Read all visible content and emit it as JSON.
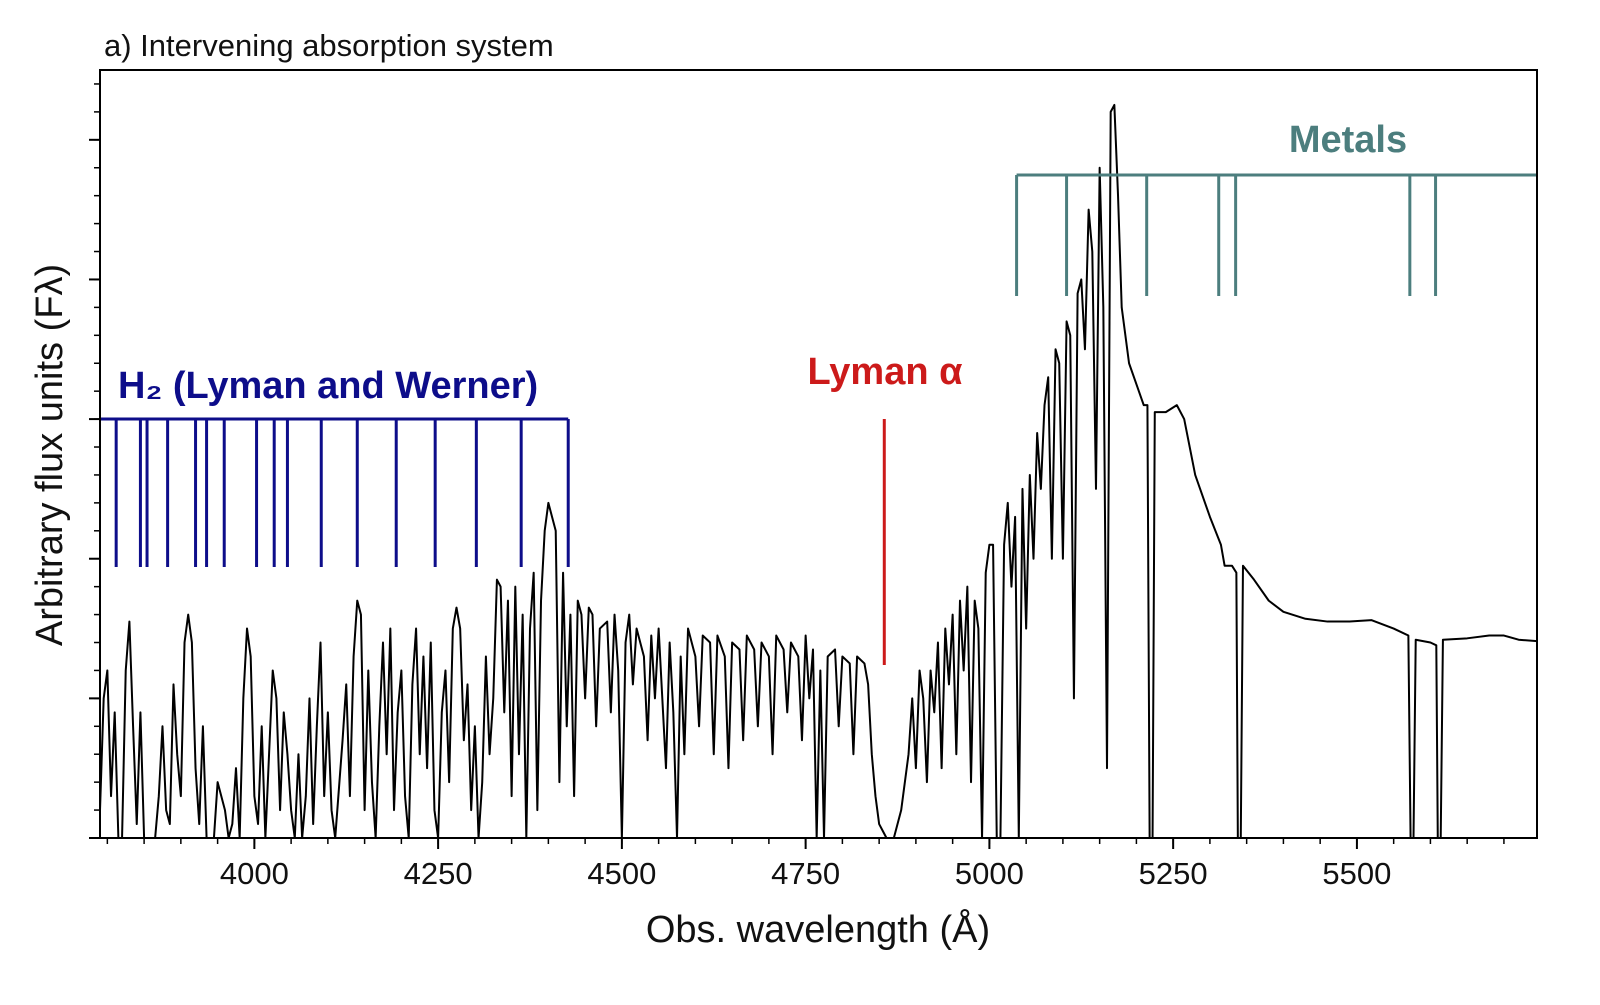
{
  "chart_data": {
    "type": "line",
    "title": "a) Intervening absorption system",
    "x_label": "Obs. wavelength  (Å)",
    "y_label": "Arbitrary flux units (Fλ)",
    "xlim": [
      3790,
      5745
    ],
    "xticks": [
      4000,
      4250,
      4500,
      4750,
      5000,
      5250,
      5500
    ],
    "xminor_step": 50,
    "ylim": [
      0,
      5.5
    ],
    "yticks": [
      0,
      1,
      2,
      3,
      4,
      5
    ],
    "yminor_step": 0.2,
    "series": [
      {
        "color": "#000000",
        "x": [
          3790,
          3795,
          3800,
          3805,
          3810,
          3815,
          3820,
          3825,
          3830,
          3835,
          3840,
          3845,
          3850,
          3855,
          3865,
          3870,
          3875,
          3880,
          3885,
          3890,
          3895,
          3900,
          3905,
          3910,
          3915,
          3920,
          3925,
          3930,
          3935,
          3945,
          3950,
          3960,
          3965,
          3970,
          3975,
          3980,
          3985,
          3990,
          3995,
          4000,
          4005,
          4010,
          4015,
          4020,
          4025,
          4030,
          4035,
          4040,
          4045,
          4050,
          4055,
          4060,
          4065,
          4070,
          4075,
          4080,
          4085,
          4090,
          4095,
          4100,
          4105,
          4110,
          4120,
          4125,
          4130,
          4135,
          4140,
          4145,
          4150,
          4155,
          4160,
          4165,
          4170,
          4175,
          4180,
          4185,
          4190,
          4195,
          4200,
          4205,
          4210,
          4215,
          4220,
          4225,
          4230,
          4235,
          4240,
          4245,
          4250,
          4255,
          4260,
          4265,
          4270,
          4275,
          4280,
          4285,
          4290,
          4295,
          4300,
          4305,
          4310,
          4315,
          4320,
          4325,
          4330,
          4335,
          4340,
          4345,
          4350,
          4355,
          4360,
          4365,
          4370,
          4375,
          4380,
          4385,
          4390,
          4395,
          4400,
          4405,
          4410,
          4415,
          4420,
          4425,
          4430,
          4435,
          4440,
          4445,
          4450,
          4455,
          4460,
          4465,
          4470,
          4480,
          4485,
          4490,
          4495,
          4500,
          4505,
          4510,
          4515,
          4520,
          4530,
          4535,
          4540,
          4545,
          4550,
          4560,
          4565,
          4570,
          4575,
          4580,
          4585,
          4590,
          4600,
          4605,
          4610,
          4620,
          4625,
          4630,
          4640,
          4645,
          4650,
          4660,
          4665,
          4670,
          4680,
          4685,
          4690,
          4700,
          4705,
          4710,
          4720,
          4725,
          4730,
          4740,
          4745,
          4750,
          4755,
          4760,
          4765,
          4770,
          4775,
          4780,
          4790,
          4795,
          4800,
          4810,
          4815,
          4820,
          4830,
          4835,
          4840,
          4845,
          4850,
          4855,
          4860,
          4870,
          4880,
          4890,
          4895,
          4900,
          4905,
          4910,
          4915,
          4920,
          4925,
          4930,
          4935,
          4940,
          4945,
          4950,
          4955,
          4960,
          4965,
          4970,
          4975,
          4980,
          4985,
          4990,
          4995,
          5000,
          5005,
          5010,
          5015,
          5020,
          5025,
          5030,
          5035,
          5040,
          5045,
          5050,
          5055,
          5060,
          5065,
          5070,
          5075,
          5080,
          5085,
          5090,
          5095,
          5100,
          5105,
          5110,
          5115,
          5120,
          5125,
          5130,
          5135,
          5140,
          5145,
          5150,
          5155,
          5160,
          5165,
          5170,
          5175,
          5180,
          5190,
          5200,
          5210,
          5215,
          5218,
          5222,
          5225,
          5240,
          5255,
          5265,
          5280,
          5300,
          5315,
          5320,
          5330,
          5336,
          5338,
          5342,
          5345,
          5360,
          5380,
          5400,
          5430,
          5460,
          5490,
          5520,
          5550,
          5570,
          5573,
          5577,
          5580,
          5600,
          5608,
          5610,
          5614,
          5617,
          5650,
          5680,
          5700,
          5720,
          5745
        ],
        "values": [
          0.2,
          1.0,
          1.2,
          0.3,
          0.9,
          0.0,
          0.0,
          1.2,
          1.55,
          0.8,
          0.1,
          0.9,
          0.0,
          0.0,
          0.0,
          0.3,
          0.8,
          0.2,
          0.1,
          1.1,
          0.6,
          0.3,
          1.4,
          1.6,
          1.4,
          0.5,
          0.1,
          0.8,
          0.0,
          0.0,
          0.4,
          0.2,
          0.0,
          0.1,
          0.5,
          0.0,
          1.0,
          1.5,
          1.3,
          0.3,
          0.1,
          0.8,
          0.0,
          0.6,
          1.2,
          1.0,
          0.2,
          0.9,
          0.6,
          0.2,
          0.0,
          0.6,
          0.0,
          0.3,
          1.0,
          0.1,
          0.8,
          1.4,
          0.3,
          0.9,
          0.2,
          0.0,
          0.7,
          1.1,
          0.3,
          1.3,
          1.7,
          1.6,
          0.2,
          1.2,
          0.4,
          0.0,
          0.8,
          1.4,
          0.6,
          1.5,
          0.2,
          0.9,
          1.2,
          0.3,
          0.0,
          1.1,
          1.5,
          0.6,
          1.3,
          0.5,
          1.4,
          0.2,
          0.0,
          0.9,
          1.2,
          0.4,
          1.5,
          1.65,
          1.5,
          0.7,
          1.1,
          0.2,
          0.8,
          0.0,
          0.4,
          1.3,
          0.6,
          1.0,
          1.85,
          1.8,
          0.9,
          1.7,
          0.3,
          1.8,
          0.6,
          1.6,
          0.0,
          1.5,
          1.9,
          0.2,
          1.7,
          2.2,
          2.4,
          2.3,
          2.2,
          0.4,
          1.9,
          0.8,
          1.6,
          0.3,
          1.7,
          1.6,
          1.0,
          1.65,
          1.6,
          0.8,
          1.5,
          1.55,
          0.9,
          1.6,
          1.2,
          0.0,
          1.4,
          1.6,
          1.1,
          1.5,
          1.3,
          0.7,
          1.45,
          1.0,
          1.5,
          0.5,
          1.4,
          0.9,
          0.0,
          1.3,
          0.6,
          1.5,
          1.3,
          0.8,
          1.45,
          1.4,
          0.6,
          1.45,
          1.3,
          0.5,
          1.4,
          1.35,
          0.7,
          1.45,
          1.35,
          0.8,
          1.4,
          1.3,
          0.6,
          1.45,
          1.35,
          0.9,
          1.4,
          1.3,
          0.7,
          1.45,
          1.0,
          1.35,
          0.0,
          1.2,
          0.0,
          1.3,
          1.35,
          0.8,
          1.3,
          1.25,
          0.6,
          1.3,
          1.25,
          1.1,
          0.6,
          0.3,
          0.1,
          0.05,
          0.0,
          0.0,
          0.2,
          0.6,
          1.0,
          0.5,
          1.2,
          1.0,
          0.4,
          1.2,
          0.9,
          1.4,
          0.5,
          1.5,
          1.1,
          1.6,
          0.6,
          1.7,
          1.2,
          1.8,
          0.4,
          1.7,
          1.5,
          0.0,
          1.9,
          2.1,
          2.1,
          0.0,
          0.0,
          2.1,
          2.4,
          1.8,
          2.3,
          0.0,
          2.5,
          1.5,
          2.6,
          2.0,
          2.9,
          2.5,
          3.1,
          3.3,
          2.0,
          3.5,
          3.4,
          2.0,
          3.7,
          3.6,
          1.0,
          3.9,
          4.0,
          3.5,
          4.5,
          4.2,
          2.5,
          4.8,
          3.8,
          0.5,
          5.2,
          5.25,
          4.6,
          3.8,
          3.4,
          3.25,
          3.1,
          3.1,
          0.0,
          0.0,
          3.05,
          3.05,
          3.1,
          3.0,
          2.6,
          2.3,
          2.1,
          1.95,
          1.95,
          1.9,
          0.0,
          0.0,
          1.95,
          1.85,
          1.7,
          1.62,
          1.57,
          1.55,
          1.55,
          1.56,
          1.5,
          1.45,
          0.0,
          0.0,
          1.42,
          1.4,
          1.38,
          0.0,
          0.0,
          1.42,
          1.43,
          1.45,
          1.45,
          1.42,
          1.41
        ]
      }
    ],
    "line_groups": [
      {
        "label": "H₂ (Lyman and Werner)",
        "color": "#0d0d8a",
        "lines": [
          3812,
          3845,
          3854,
          3882,
          3920,
          3935,
          3959,
          4003,
          4027,
          4045,
          4091,
          4140,
          4193,
          4246,
          4302,
          4363,
          4427
        ]
      },
      {
        "label": "Lyman α",
        "color": "#cc1a1a",
        "lines": [
          4857
        ]
      },
      {
        "label": "Metals",
        "color": "#4c7e7e",
        "lines": [
          5037,
          5105,
          5214,
          5312,
          5335,
          5572,
          5607
        ]
      }
    ]
  }
}
